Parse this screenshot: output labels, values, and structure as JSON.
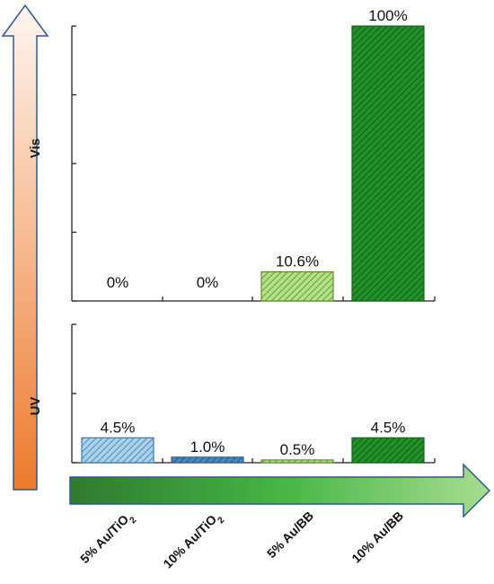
{
  "chart_data": [
    {
      "type": "bar",
      "panel": "Vis",
      "categories": [
        "5% Au/TiO2",
        "10% Au/TiO2",
        "5% Au/BB",
        "10% Au/BB"
      ],
      "values": [
        0,
        0,
        10.6,
        100
      ],
      "value_labels": [
        "0%",
        "0%",
        "10.6%",
        "100%"
      ],
      "ylim": [
        0,
        100
      ],
      "grid": false
    },
    {
      "type": "bar",
      "panel": "UV",
      "categories": [
        "5% Au/TiO2",
        "10% Au/TiO2",
        "5% Au/BB",
        "10% Au/BB"
      ],
      "values": [
        4.5,
        1.0,
        0.5,
        4.5
      ],
      "value_labels": [
        "4.5%",
        "1.0%",
        "0.5%",
        "4.5%"
      ],
      "ylim": [
        0,
        25
      ],
      "grid": false
    }
  ],
  "vertical_arrow": {
    "labels": [
      "Vis",
      "UV"
    ],
    "top_color": "#fff6f0",
    "bottom_color": "#ed7a2c",
    "outline_color": "#2b5a8f"
  },
  "horizontal_arrow": {
    "start_color": "#2f7a2f",
    "end_color": "#a7dd8f",
    "outline_color": "#2b5a8f"
  },
  "category_labels": [
    {
      "main": "5% Au/TiO",
      "sub": "2"
    },
    {
      "main": "10% Au/TiO",
      "sub": "2"
    },
    {
      "main": "5% Au/BB",
      "sub": ""
    },
    {
      "main": "10% Au/BB",
      "sub": ""
    }
  ],
  "bar_styles": [
    {
      "fill": "#a9d2ea",
      "stroke": "#3b79ad",
      "hatch": "#3b79ad"
    },
    {
      "fill": "#4d88c2",
      "stroke": "#2a5f93",
      "hatch": "#1e4b7a"
    },
    {
      "fill": "#b5e08a",
      "stroke": "#5a8f2e",
      "hatch": "#4f8a26"
    },
    {
      "fill": "#22912a",
      "stroke": "#136618",
      "hatch": "#0e4f12"
    }
  ]
}
